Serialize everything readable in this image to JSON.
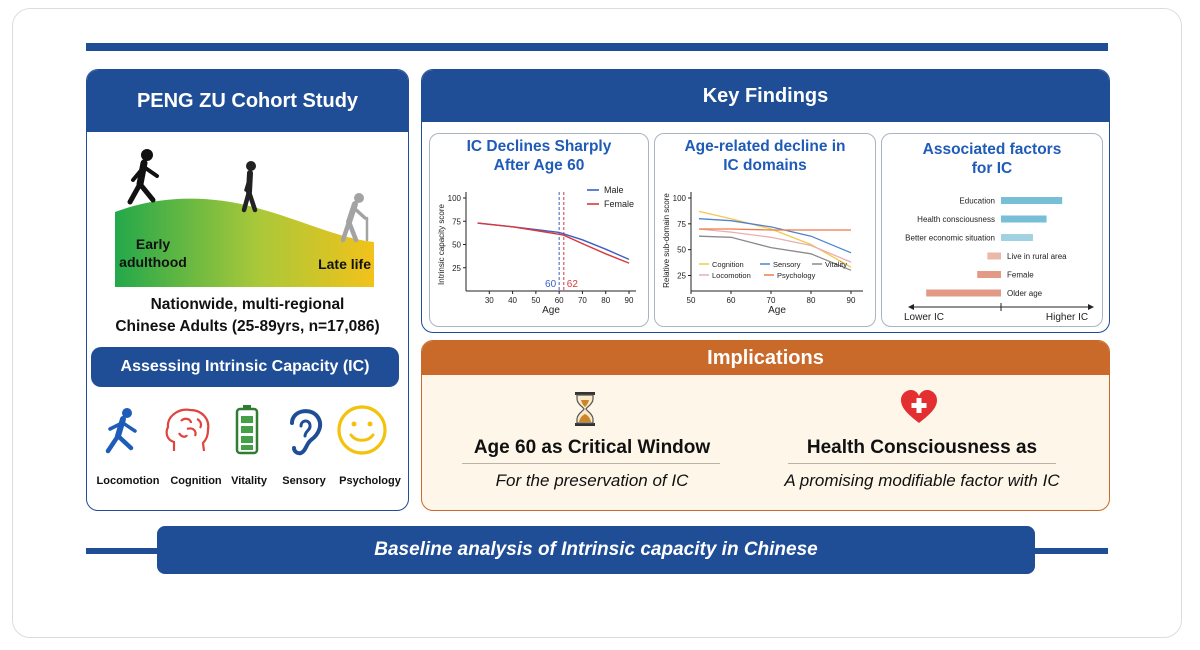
{
  "left": {
    "title": "PENG ZU Cohort Study",
    "stages": {
      "early_line1": "Early",
      "early_line2": "adulthood",
      "late": "Late life"
    },
    "nationwide": "Nationwide, multi-regional",
    "population": "Chinese Adults (25-89yrs, n=17,086)",
    "assessing": "Assessing Intrinsic Capacity (IC)",
    "domains": [
      "Locomotion",
      "Cognition",
      "Vitality",
      "Sensory",
      "Psychology"
    ]
  },
  "key_findings": {
    "title": "Key Findings",
    "chart1_title_l1": "IC Declines Sharply",
    "chart1_title_l2": "After Age 60",
    "chart2_title_l1": "Age-related decline in",
    "chart2_title_l2": "IC domains",
    "chart3_title_l1": "Associated factors",
    "chart3_title_l2": "for IC"
  },
  "implications": {
    "title": "Implications",
    "item1_title": "Age 60 as Critical Window",
    "item1_sub": "For the preservation of  IC",
    "item2_title": "Health Consciousness as",
    "item2_sub": "A promising modifiable factor with IC"
  },
  "banner": "Baseline analysis of Intrinsic capacity in Chinese",
  "colors": {
    "primary": "#1f4e96",
    "accent": "#c9692a",
    "male": "#3b5fc4",
    "female": "#d9383a",
    "positive": "#77bfd6",
    "negative": "#e29a86"
  },
  "chart_data": [
    {
      "type": "line",
      "title": "IC Declines Sharply After Age 60",
      "xlabel": "Age",
      "ylabel": "Intrinsic capacity score",
      "xlim": [
        20,
        93
      ],
      "ylim": [
        0,
        100
      ],
      "xticks": [
        30,
        40,
        50,
        60,
        70,
        80,
        90
      ],
      "yticks": [
        25,
        50,
        75,
        100
      ],
      "series": [
        {
          "name": "Male",
          "x": [
            25,
            40,
            50,
            60,
            70,
            80,
            90
          ],
          "values": [
            73,
            69,
            66,
            63,
            55,
            45,
            34
          ]
        },
        {
          "name": "Female",
          "x": [
            25,
            40,
            50,
            60,
            62,
            70,
            80,
            90
          ],
          "values": [
            73,
            69,
            65,
            61,
            60,
            51,
            40,
            30
          ]
        }
      ],
      "annotations": [
        {
          "x": 60,
          "label": "60"
        },
        {
          "x": 62,
          "label": "62"
        }
      ],
      "legend": "top-right"
    },
    {
      "type": "line",
      "title": "Age-related decline in IC domains",
      "xlabel": "Age",
      "ylabel": "Relative sub-domain score",
      "xlim": [
        50,
        93
      ],
      "ylim": [
        10,
        100
      ],
      "xticks": [
        50,
        60,
        70,
        80,
        90
      ],
      "yticks": [
        25,
        50,
        75,
        100
      ],
      "series": [
        {
          "name": "Cognition",
          "x": [
            52,
            60,
            70,
            80,
            90
          ],
          "values": [
            87,
            80,
            70,
            55,
            33
          ]
        },
        {
          "name": "Sensory",
          "x": [
            52,
            60,
            70,
            80,
            90
          ],
          "values": [
            80,
            78,
            72,
            63,
            47
          ]
        },
        {
          "name": "Vitality",
          "x": [
            52,
            60,
            70,
            80,
            90
          ],
          "values": [
            63,
            62,
            52,
            46,
            30
          ]
        },
        {
          "name": "Locomotion",
          "x": [
            52,
            60,
            70,
            80,
            90
          ],
          "values": [
            70,
            67,
            62,
            54,
            38
          ]
        },
        {
          "name": "Psychology",
          "x": [
            52,
            60,
            70,
            80,
            90
          ],
          "values": [
            70,
            70,
            69,
            69,
            69
          ]
        }
      ],
      "legend": "bottom"
    },
    {
      "type": "bar",
      "title": "Associated factors for IC",
      "orientation": "horizontal",
      "categories": [
        "Education",
        "Health consciousness",
        "Better economic situation",
        "Live in rural area",
        "Female",
        "Older age"
      ],
      "values": [
        0.9,
        0.67,
        0.47,
        -0.2,
        -0.35,
        -1.1
      ],
      "xlabel_left": "Lower IC",
      "xlabel_right": "Higher IC"
    }
  ]
}
